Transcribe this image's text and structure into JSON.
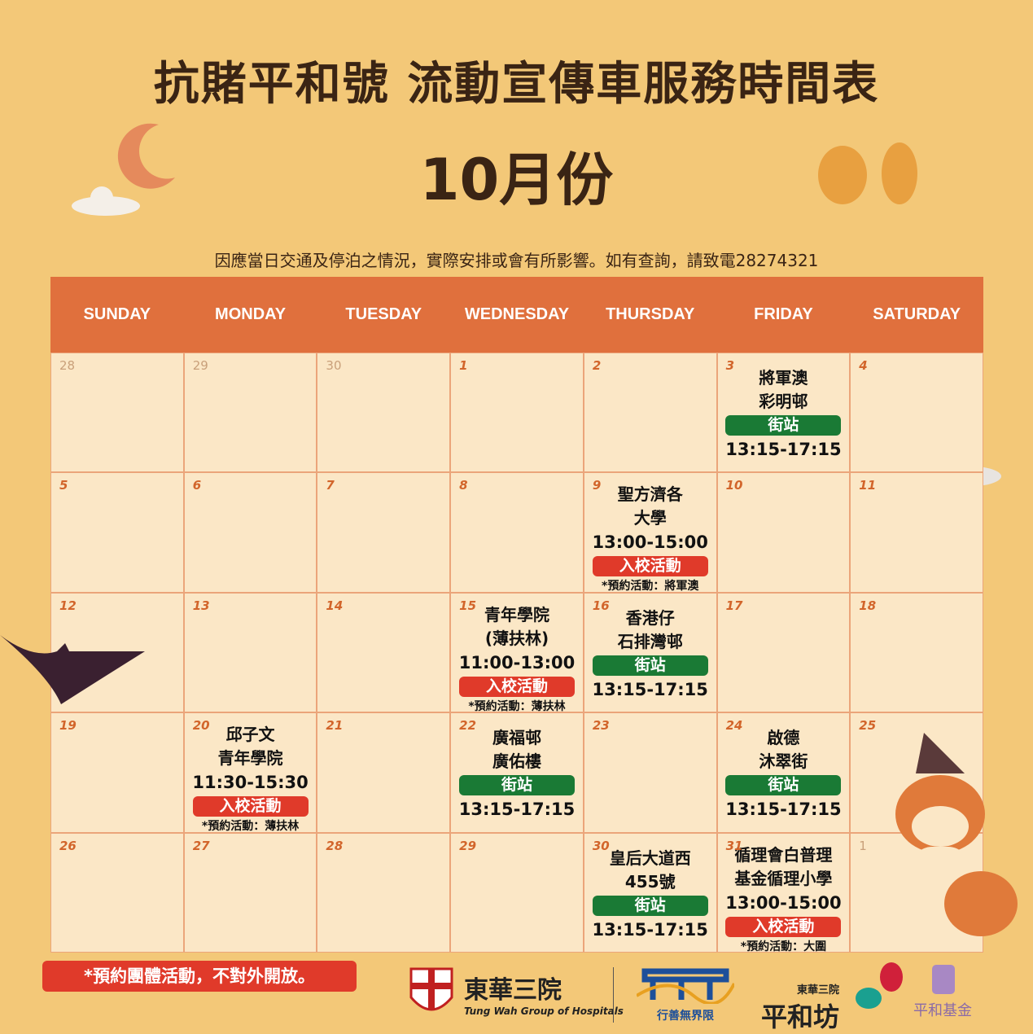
{
  "title": "抗賭平和號 流動宣傳車服務時間表",
  "month": "10月份",
  "notice": "因應當日交通及停泊之情況，實際安排或會有所影響。如有查詢，請致電28274321",
  "weekdays": [
    "SUNDAY",
    "MONDAY",
    "TUESDAY",
    "WEDNESDAY",
    "THURSDAY",
    "FRIDAY",
    "SATURDAY"
  ],
  "colors": {
    "header": "#e0703d",
    "street_badge": "#1a7a35",
    "school_badge": "#e03a2a",
    "background": "#f3c878"
  },
  "cells": [
    {
      "day": "28",
      "other": true
    },
    {
      "day": "29",
      "other": true
    },
    {
      "day": "30",
      "other": true
    },
    {
      "day": "1"
    },
    {
      "day": "2"
    },
    {
      "day": "3",
      "lines": [
        "將軍澳",
        "彩明邨"
      ],
      "badge": "街站",
      "type": "street",
      "time": "13:15-17:15"
    },
    {
      "day": "4"
    },
    {
      "day": "5"
    },
    {
      "day": "6"
    },
    {
      "day": "7"
    },
    {
      "day": "8"
    },
    {
      "day": "9",
      "lines": [
        "聖方濟各",
        "大學"
      ],
      "time": "13:00-15:00",
      "badge": "入校活動",
      "type": "school",
      "note": "*預約活動：將軍澳"
    },
    {
      "day": "10"
    },
    {
      "day": "11"
    },
    {
      "day": "12"
    },
    {
      "day": "13"
    },
    {
      "day": "14"
    },
    {
      "day": "15",
      "lines": [
        "青年學院",
        "(薄扶林)"
      ],
      "time": "11:00-13:00",
      "badge": "入校活動",
      "type": "school",
      "note": "*預約活動：薄扶林"
    },
    {
      "day": "16",
      "lines": [
        "香港仔",
        "石排灣邨"
      ],
      "badge": "街站",
      "type": "street",
      "time": "13:15-17:15"
    },
    {
      "day": "17"
    },
    {
      "day": "18"
    },
    {
      "day": "19"
    },
    {
      "day": "20",
      "lines": [
        "邱子文",
        "青年學院"
      ],
      "time": "11:30-15:30",
      "badge": "入校活動",
      "type": "school",
      "note": "*預約活動：薄扶林"
    },
    {
      "day": "21"
    },
    {
      "day": "22",
      "lines": [
        "廣福邨",
        "廣佑樓"
      ],
      "badge": "街站",
      "type": "street",
      "time": "13:15-17:15"
    },
    {
      "day": "23"
    },
    {
      "day": "24",
      "lines": [
        "啟德",
        "沐翠街"
      ],
      "badge": "街站",
      "type": "street",
      "time": "13:15-17:15"
    },
    {
      "day": "25"
    },
    {
      "day": "26"
    },
    {
      "day": "27"
    },
    {
      "day": "28"
    },
    {
      "day": "29"
    },
    {
      "day": "30",
      "lines": [
        "皇后大道西",
        "455號"
      ],
      "badge": "街站",
      "type": "street",
      "time": "13:15-17:15"
    },
    {
      "day": "31",
      "lines": [
        "循理會白普理",
        "基金循理小學"
      ],
      "time": "13:00-15:00",
      "badge": "入校活動",
      "type": "school",
      "note": "*預約活動：大圍"
    },
    {
      "day": "1",
      "other": true
    }
  ],
  "footer": {
    "note": "*預約團體活動，不對外開放。",
    "logo1_cn": "東華三院",
    "logo1_en": "Tung Wah Group of Hospitals",
    "logo2": "行善無界限",
    "logo3_top": "東華三院",
    "logo3": "平和坊",
    "logo4": "平和基金"
  }
}
